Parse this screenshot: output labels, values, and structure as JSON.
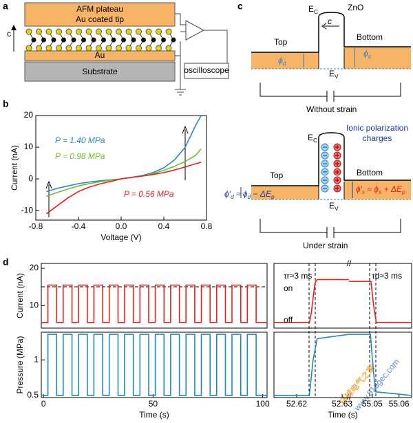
{
  "panels": [
    "a",
    "b",
    "c",
    "d"
  ],
  "diagram_a": {
    "plateau": "AFM plateau",
    "tip": "Au coated tip",
    "axis": "c",
    "au": "Au",
    "substrate": "Substrate",
    "scope": "oscilloscope"
  },
  "diagram_c": {
    "without": {
      "ec": [
        {
          "text": "E"
        },
        {
          "text": "C",
          "sub": true
        }
      ],
      "material": "ZnO",
      "axis": "c",
      "top": "Top",
      "bottom": "Bottom",
      "phi_d": [
        {
          "text": "ϕ"
        },
        {
          "text": "d",
          "sub": true
        }
      ],
      "phi_s": [
        {
          "text": "ϕ"
        },
        {
          "text": "s",
          "sub": true
        }
      ],
      "ev": [
        {
          "text": "E"
        },
        {
          "text": "V",
          "sub": true
        }
      ],
      "caption": "Without strain"
    },
    "under": {
      "ec": [
        {
          "text": "E"
        },
        {
          "text": "C",
          "sub": true
        }
      ],
      "ionic": [
        "Ionic polarization",
        "charges"
      ],
      "top": "Top",
      "bottom": "Bottom",
      "phi_d": [
        {
          "text": "ϕ′"
        },
        {
          "text": "d",
          "sub": true
        },
        {
          "text": " ≈ ϕ"
        },
        {
          "text": "d",
          "sub": true
        },
        {
          "text": " − ΔE"
        },
        {
          "text": "p",
          "sub": true
        }
      ],
      "phi_s": [
        {
          "text": "ϕ′"
        },
        {
          "text": "s",
          "sub": true
        },
        {
          "text": " ≈ ϕ"
        },
        {
          "text": "s",
          "sub": true
        },
        {
          "text": " + ΔE"
        },
        {
          "text": "p",
          "sub": true
        }
      ],
      "ev": [
        {
          "text": "E"
        },
        {
          "text": "V",
          "sub": true
        }
      ],
      "caption": "Under strain"
    }
  },
  "watermark": [
    "环球电气之家",
    "www.51dgec.com"
  ],
  "chart_data": [
    {
      "type": "line",
      "xlabel": "Voltage (V)",
      "ylabel": "Current (nA)",
      "xlim": [
        -0.8,
        0.8
      ],
      "ylim": [
        -13,
        20
      ],
      "xticks": [
        -0.8,
        -0.4,
        {
          "value": 0,
          "label": "0.0"
        },
        0.4,
        0.8
      ],
      "yticks": [
        -10,
        0,
        10,
        20
      ],
      "x": [
        -0.7,
        -0.6,
        -0.5,
        -0.4,
        -0.3,
        -0.2,
        -0.1,
        0,
        0.1,
        0.2,
        0.3,
        0.4,
        0.5,
        0.6,
        0.7,
        0.75
      ],
      "series": [
        {
          "name": "P = 1.40 MPa",
          "color": "#2a87c8",
          "values": [
            -4,
            -3,
            -2.2,
            -1.5,
            -1,
            -0.6,
            -0.3,
            0,
            0.5,
            1.1,
            2,
            3.5,
            6,
            10,
            17,
            20
          ]
        },
        {
          "name": "P = 0.98 MPa",
          "color": "#6cc22a",
          "values": [
            -5.5,
            -4.3,
            -3.2,
            -2.2,
            -1.5,
            -0.9,
            -0.4,
            0,
            0.5,
            1,
            1.7,
            2.7,
            4,
            5.5,
            7.5,
            9.5
          ]
        },
        {
          "name": "P = 0.56 MPa",
          "color": "#e8201c",
          "values": [
            -11,
            -8.5,
            -6,
            -4,
            -2.6,
            -1.6,
            -0.8,
            0,
            0.5,
            0.9,
            1.4,
            2,
            2.8,
            3.8,
            4.8,
            5.3
          ]
        }
      ]
    },
    {
      "type": "line",
      "ylabel": "Current (nA)",
      "xlim": [
        -1,
        102
      ],
      "ylim": [
        4,
        21.3
      ],
      "yticks": [
        10,
        20
      ],
      "x": [
        -1,
        2,
        2,
        6,
        6,
        9,
        9,
        13,
        13,
        16,
        16,
        20,
        20,
        23,
        23,
        27,
        27,
        30,
        30,
        34,
        34,
        37,
        37,
        41,
        41,
        44,
        44,
        48,
        48,
        51,
        51,
        55,
        55,
        58,
        58,
        62,
        62,
        65,
        65,
        69,
        69,
        72,
        72,
        76,
        76,
        79,
        79,
        83,
        83,
        86,
        86,
        90,
        90,
        93,
        93,
        97,
        97,
        102
      ],
      "series": [
        {
          "color": "#e8201c",
          "values": [
            5.5,
            5.5,
            15.5,
            15.5,
            5.5,
            5.5,
            15.5,
            15.5,
            5.5,
            5.5,
            15.5,
            15.5,
            5.5,
            5.5,
            15.5,
            15.5,
            5.5,
            5.5,
            15.5,
            15.5,
            5.5,
            5.5,
            15.5,
            15.5,
            5.5,
            5.5,
            15.5,
            15.5,
            5.5,
            5.5,
            15.5,
            15.5,
            5.5,
            5.5,
            15.5,
            15.5,
            5.5,
            5.5,
            15.5,
            15.5,
            5.5,
            5.5,
            15.5,
            15.5,
            5.5,
            5.5,
            15.5,
            15.5,
            5.5,
            5.5,
            15.5,
            15.5,
            5.5,
            5.5,
            15.5,
            15.5,
            5.5,
            5.5
          ]
        }
      ]
    },
    {
      "type": "line",
      "xlabel": "Time (s)",
      "ylabel": "Pressure (MPa)",
      "xlim": [
        -1,
        102
      ],
      "ylim": [
        0.47,
        1.39
      ],
      "xticks": [
        0,
        50,
        100
      ],
      "yticks": [
        0.5,
        1.0
      ],
      "x": [
        -1,
        2,
        2,
        6,
        6,
        9,
        9,
        13,
        13,
        16,
        16,
        20,
        20,
        23,
        23,
        27,
        27,
        30,
        30,
        34,
        34,
        37,
        37,
        41,
        41,
        44,
        44,
        48,
        48,
        51,
        51,
        55,
        55,
        58,
        58,
        62,
        62,
        65,
        65,
        69,
        69,
        72,
        72,
        76,
        76,
        79,
        79,
        83,
        83,
        86,
        86,
        90,
        90,
        93,
        93,
        97,
        97,
        102
      ],
      "series": [
        {
          "color": "#1f88c4",
          "values": [
            0.5,
            0.5,
            1.36,
            1.36,
            0.5,
            0.5,
            1.36,
            1.36,
            0.5,
            0.5,
            1.36,
            1.36,
            0.5,
            0.5,
            1.36,
            1.36,
            0.5,
            0.5,
            1.36,
            1.36,
            0.5,
            0.5,
            1.36,
            1.36,
            0.5,
            0.5,
            1.36,
            1.36,
            0.5,
            0.5,
            1.36,
            1.36,
            0.5,
            0.5,
            1.36,
            1.36,
            0.5,
            0.5,
            1.36,
            1.36,
            0.5,
            0.5,
            1.36,
            1.36,
            0.5,
            0.5,
            1.36,
            1.36,
            0.5,
            0.5,
            1.36,
            1.36,
            0.5,
            0.5,
            1.36,
            1.36,
            0.5,
            0.5
          ]
        }
      ]
    },
    {
      "type": "line",
      "xlim": [
        [
          52.615,
          52.6315
        ],
        [
          55.0413,
          55.0647
        ]
      ],
      "ylim": [
        4,
        21.3
      ],
      "annotations": [
        "τr≈3 ms",
        "τd≈3 ms",
        "on",
        "off"
      ],
      "x": [
        52.615,
        52.6228,
        52.6232,
        52.624,
        52.6245,
        52.6315,
        null,
        55.0413,
        55.0495,
        55.0505,
        55.0515,
        55.0647
      ],
      "series": [
        {
          "color": "#e8201c",
          "values": [
            5.5,
            5.5,
            8,
            16,
            17,
            17,
            null,
            16.5,
            16.5,
            10,
            5.5,
            5.5
          ]
        }
      ]
    },
    {
      "type": "line",
      "xlabel": "Time (s)",
      "xlim": [
        [
          52.615,
          52.6315
        ],
        [
          55.0413,
          55.0647
        ]
      ],
      "ylim": [
        0.47,
        1.39
      ],
      "xticks": [
        52.62,
        52.63,
        55.05,
        55.06
      ],
      "x": [
        52.615,
        52.6228,
        52.6236,
        52.6245,
        52.6315,
        null,
        55.0413,
        55.0493,
        55.0503,
        55.0512,
        55.0647
      ],
      "series": [
        {
          "color": "#1f88c4",
          "values": [
            0.5,
            0.5,
            1.0,
            1.3,
            1.36,
            null,
            1.36,
            1.36,
            0.9,
            0.55,
            0.5
          ]
        }
      ]
    }
  ]
}
